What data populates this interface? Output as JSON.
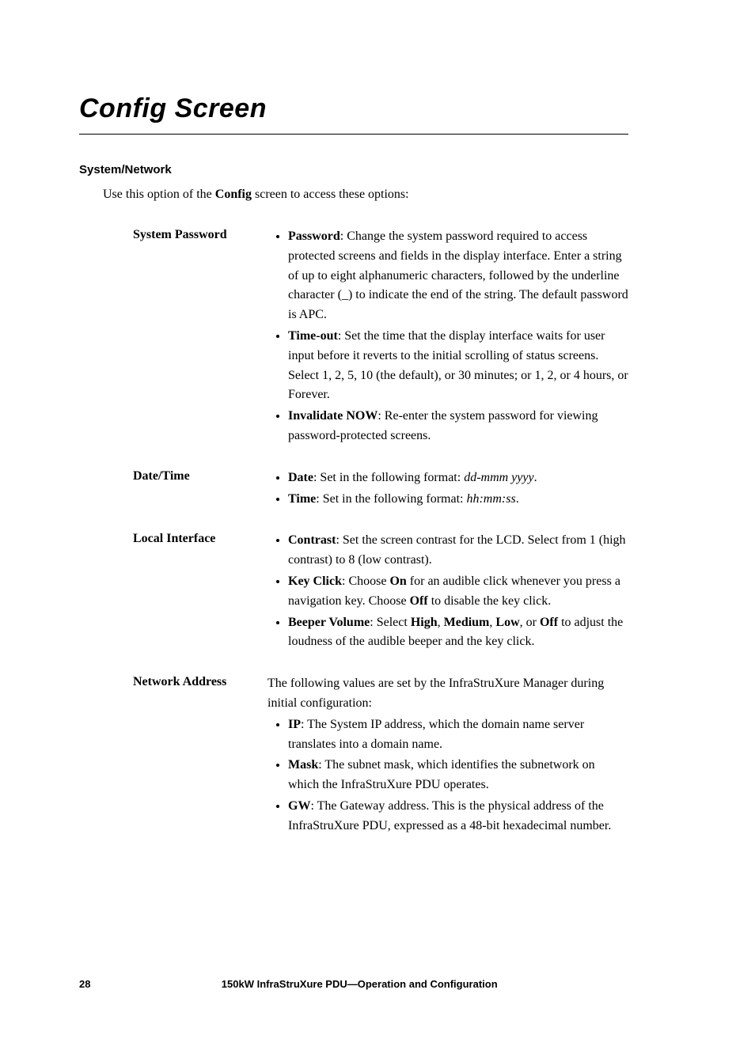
{
  "title": "Config Screen",
  "section_head": "System/Network",
  "intro_pre": "Use this option of the ",
  "intro_bold": "Config",
  "intro_post": " screen to access these options:",
  "rows": {
    "syspass": {
      "label": "System Password",
      "password": {
        "t": "Password",
        "d": ": Change the system password required to access protected screens and fields in the display interface. Enter a string of up to eight alphanumeric characters, followed by the underline character (_) to indicate the end of the string. The default password is APC."
      },
      "timeout": {
        "t": "Time-out",
        "d": ": Set the time that the display interface waits for user input before it reverts to the initial scrolling of status screens. Select 1, 2, 5, 10 (the default), or 30 minutes; or 1, 2, or 4 hours, or Forever."
      },
      "invalidate": {
        "t": "Invalidate NOW",
        "d": ": Re-enter the system password for viewing password-protected screens."
      }
    },
    "datetime": {
      "label": "Date/Time",
      "date": {
        "t": "Date",
        "d1": ": Set in the following format: ",
        "i": "dd-mmm yyyy",
        "d2": "."
      },
      "time": {
        "t": "Time",
        "d1": ": Set in the following format: ",
        "i": "hh:mm:ss",
        "d2": "."
      }
    },
    "local": {
      "label": "Local Interface",
      "contrast": {
        "t": "Contrast",
        "d": ": Set the screen contrast for the LCD. Select from 1 (high contrast) to 8 (low contrast)."
      },
      "keyclick": {
        "t": "Key Click",
        "d1": ": Choose ",
        "on": "On",
        "d2": " for an audible click whenever you press a navigation key. Choose ",
        "off": "Off",
        "d3": " to disable the key click."
      },
      "beeper": {
        "t": "Beeper Volume",
        "d1": ": Select ",
        "h": "High",
        "c1": ", ",
        "m": "Medium",
        "c2": ", ",
        "l": "Low",
        "c3": ", or ",
        "o": "Off",
        "d2": " to adjust the loudness of the audible beeper and the key click."
      }
    },
    "net": {
      "label": "Network Address",
      "lead": "The following values are set by the InfraStruXure Manager during initial configuration:",
      "ip": {
        "t": "IP",
        "d": ": The System IP address, which the domain name server translates into a domain name."
      },
      "mask": {
        "t": "Mask",
        "d": ": The subnet mask, which identifies the subnetwork on which the InfraStruXure PDU operates."
      },
      "gw": {
        "t": "GW",
        "d": ": The Gateway address. This is the physical address of the InfraStruXure PDU, expressed as a 48-bit hexadecimal number."
      }
    }
  },
  "footer": {
    "page": "28",
    "text": "150kW InfraStruXure PDU—Operation and Configuration"
  }
}
